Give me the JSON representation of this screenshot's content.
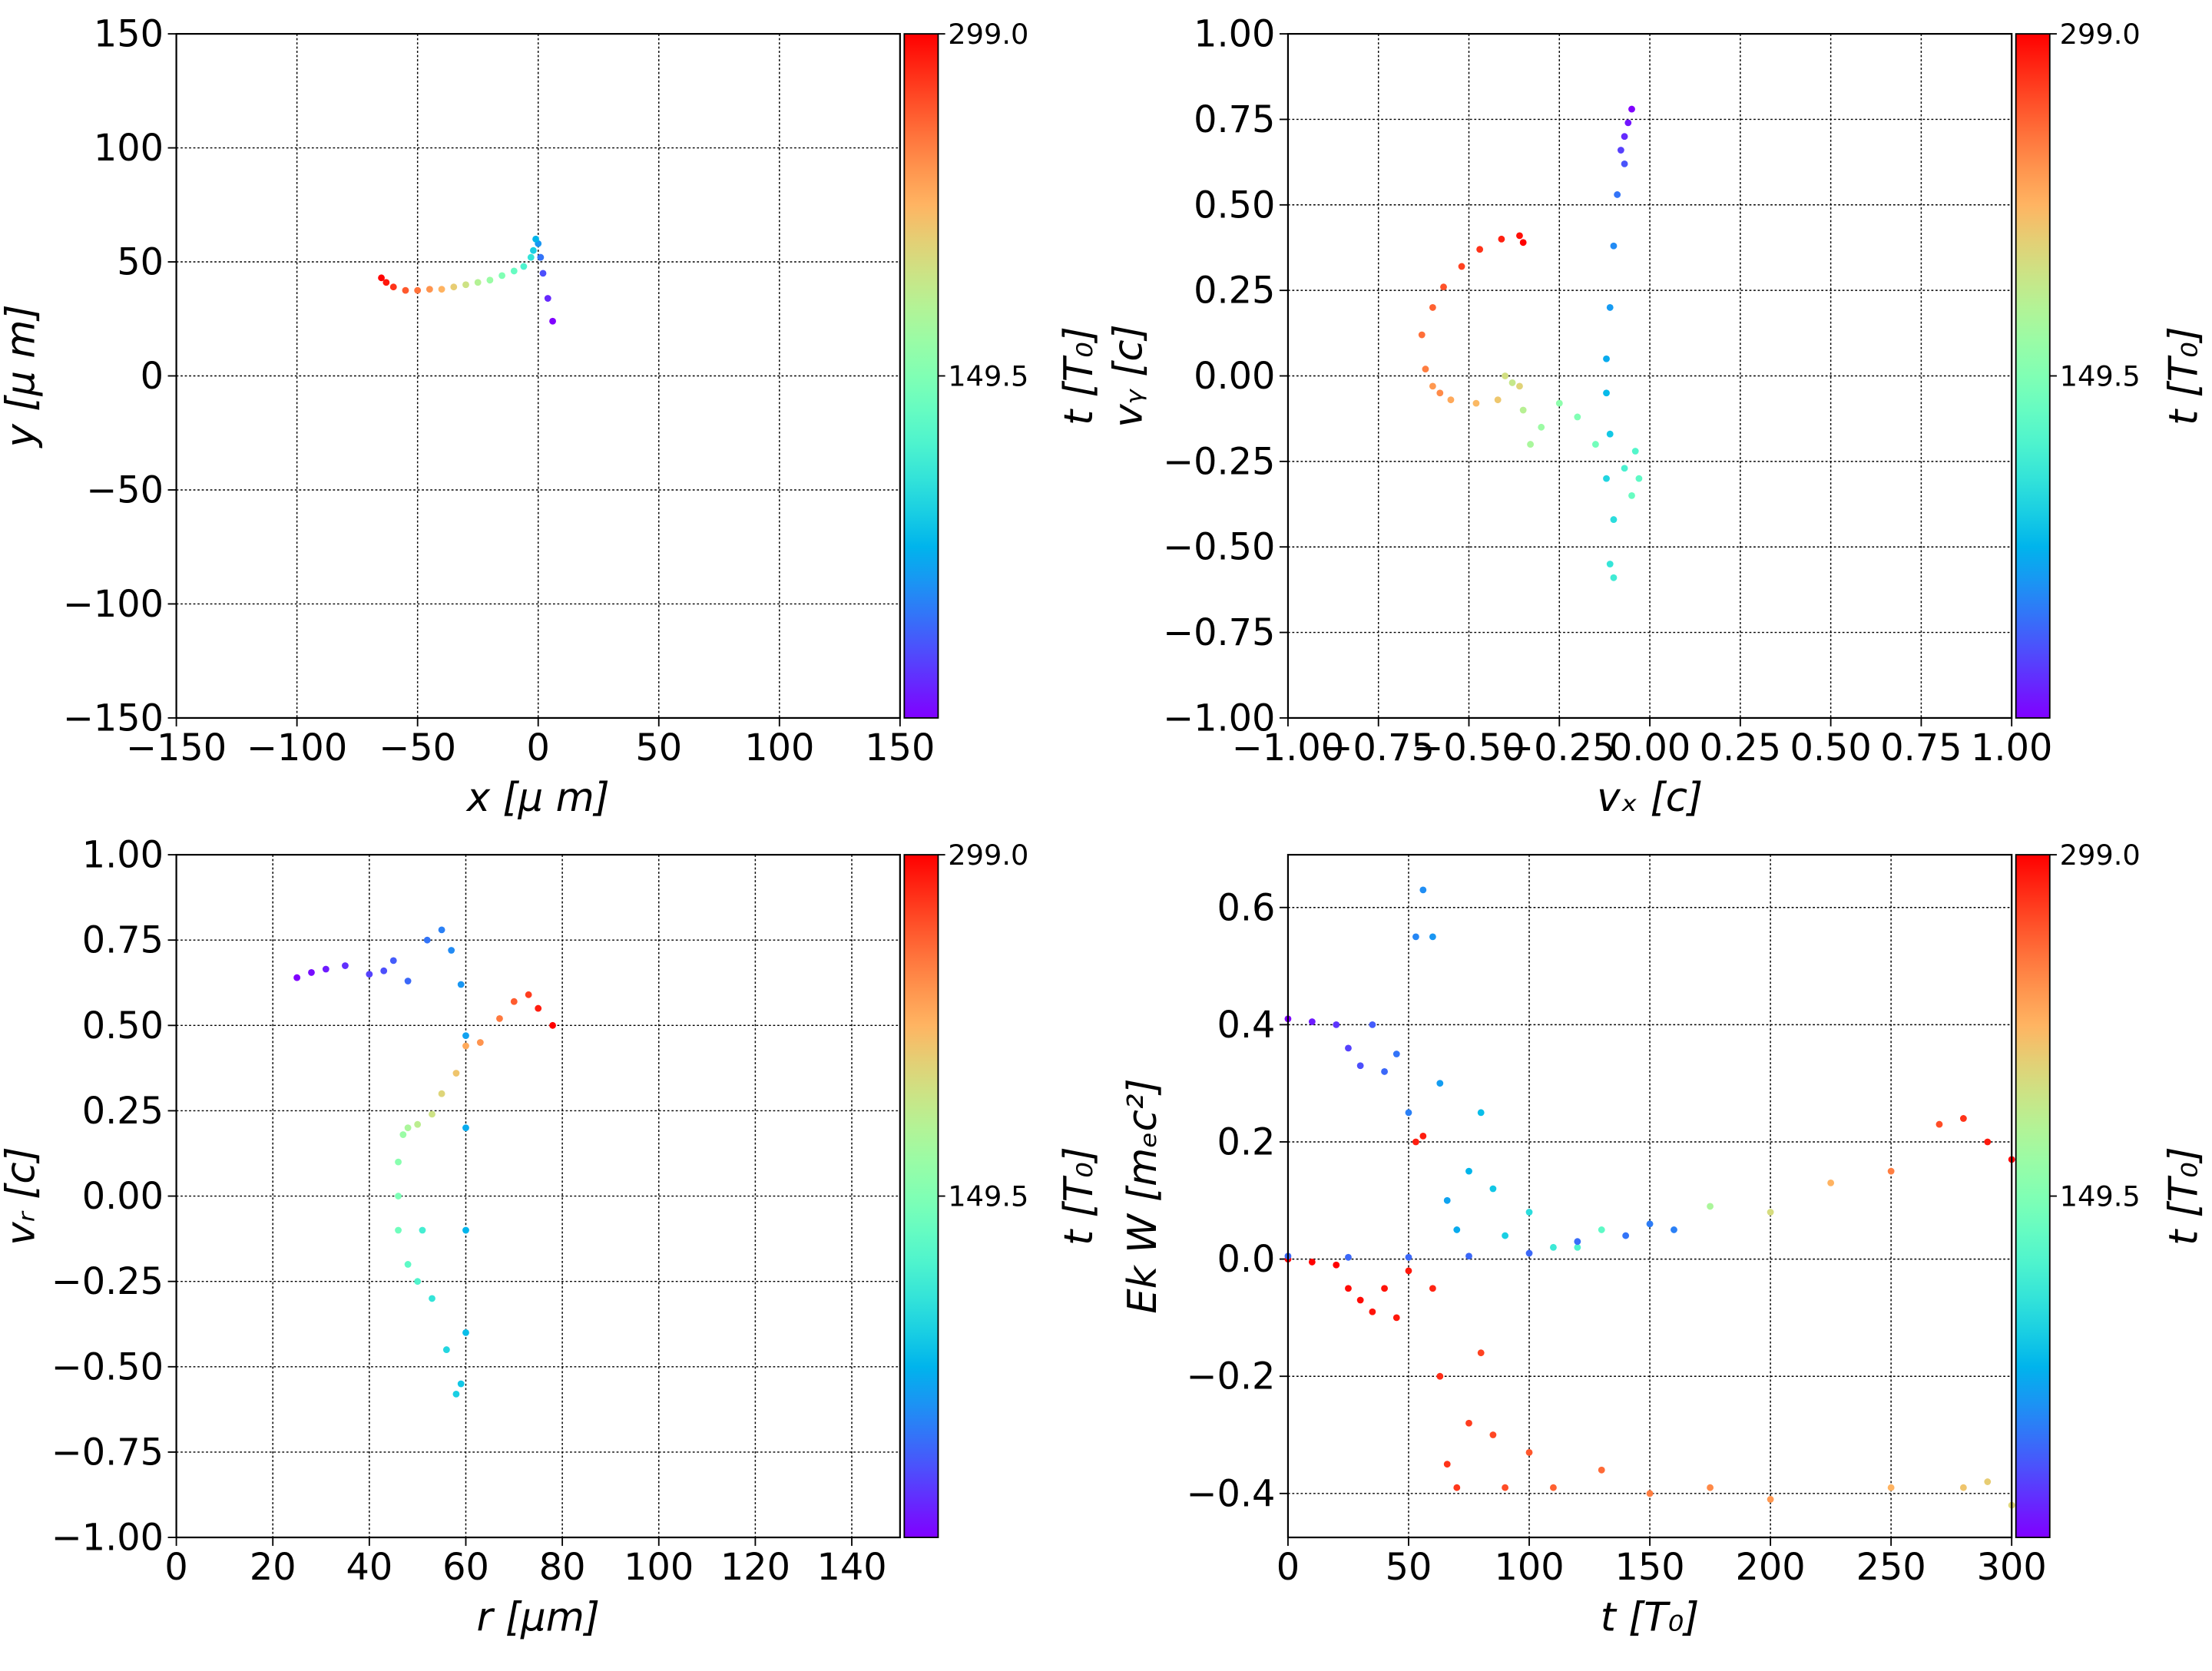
{
  "chart_data": [
    {
      "type": "scatter",
      "xlabel": "x  [μ m]",
      "ylabel": "y  [μ m]",
      "clabel": "t [T₀]",
      "colormap": "rainbow",
      "grid": true,
      "xlim": [
        -150,
        150
      ],
      "ylim": [
        -150,
        150
      ],
      "clim": [
        0,
        299
      ],
      "xticks": [
        {
          "value": -150,
          "label": "−150"
        },
        {
          "value": -100,
          "label": "−100"
        },
        {
          "value": -50,
          "label": "−50"
        },
        0,
        50,
        100,
        150
      ],
      "yticks": [
        {
          "value": -150,
          "label": "−150"
        },
        {
          "value": -100,
          "label": "−100"
        },
        {
          "value": -50,
          "label": "−50"
        },
        0,
        50,
        100,
        150
      ],
      "cticks": [
        149.5,
        {
          "value": 299,
          "label": "299.0"
        }
      ],
      "series": [
        {
          "x": [
            6,
            4,
            2,
            1,
            0,
            -1,
            -2,
            -3,
            -6,
            -10,
            -15,
            -20,
            -25,
            -30,
            -35,
            -40,
            -45,
            -50,
            -55,
            -60,
            -63,
            -65
          ],
          "y": [
            24,
            34,
            45,
            52,
            58,
            60,
            55,
            52,
            48,
            46,
            44,
            42,
            41,
            40,
            39,
            38,
            38,
            37.5,
            37.5,
            39,
            41,
            43
          ],
          "c": [
            0,
            15,
            30,
            45,
            60,
            75,
            90,
            105,
            120,
            135,
            150,
            165,
            180,
            195,
            210,
            225,
            240,
            255,
            265,
            280,
            290,
            299
          ]
        }
      ]
    },
    {
      "type": "scatter",
      "xlabel": "vₓ [c]",
      "ylabel": "vᵧ [c]",
      "clabel": "t [T₀]",
      "colormap": "rainbow",
      "grid": true,
      "xlim": [
        -1,
        1
      ],
      "ylim": [
        -1,
        1
      ],
      "clim": [
        0,
        299
      ],
      "xticks": [
        {
          "value": -1,
          "label": "−1.00"
        },
        {
          "value": -0.75,
          "label": "−0.75"
        },
        {
          "value": -0.5,
          "label": "−0.50"
        },
        {
          "value": -0.25,
          "label": "−0.25"
        },
        {
          "value": 0,
          "label": "0.00"
        },
        {
          "value": 0.25,
          "label": "0.25"
        },
        {
          "value": 0.5,
          "label": "0.50"
        },
        {
          "value": 0.75,
          "label": "0.75"
        },
        {
          "value": 1,
          "label": "1.00"
        }
      ],
      "yticks": [
        {
          "value": -1,
          "label": "−1.00"
        },
        {
          "value": -0.75,
          "label": "−0.75"
        },
        {
          "value": -0.5,
          "label": "−0.50"
        },
        {
          "value": -0.25,
          "label": "−0.25"
        },
        {
          "value": 0,
          "label": "0.00"
        },
        {
          "value": 0.25,
          "label": "0.25"
        },
        {
          "value": 0.5,
          "label": "0.50"
        },
        {
          "value": 0.75,
          "label": "0.75"
        },
        {
          "value": 1,
          "label": "1.00"
        }
      ],
      "cticks": [
        149.5,
        {
          "value": 299,
          "label": "299.0"
        }
      ],
      "series": [
        {
          "x": [
            -0.05,
            -0.06,
            -0.07,
            -0.08,
            -0.07,
            -0.09,
            -0.1,
            -0.11,
            -0.12,
            -0.12,
            -0.11,
            -0.12,
            -0.1,
            -0.11,
            -0.1,
            -0.07,
            -0.04,
            -0.03,
            -0.05,
            -0.15,
            -0.2,
            -0.25,
            -0.3,
            -0.33,
            -0.35,
            -0.38,
            -0.4,
            -0.36,
            -0.42,
            -0.48,
            -0.55,
            -0.6,
            -0.58,
            -0.62,
            -0.63,
            -0.6,
            -0.57,
            -0.52,
            -0.47,
            -0.41,
            -0.36,
            -0.35
          ],
          "y": [
            0.78,
            0.74,
            0.7,
            0.66,
            0.62,
            0.53,
            0.38,
            0.2,
            0.05,
            -0.05,
            -0.17,
            -0.3,
            -0.42,
            -0.55,
            -0.59,
            -0.27,
            -0.22,
            -0.3,
            -0.35,
            -0.2,
            -0.12,
            -0.08,
            -0.15,
            -0.2,
            -0.1,
            -0.02,
            0,
            -0.03,
            -0.07,
            -0.08,
            -0.07,
            -0.03,
            -0.05,
            0.02,
            0.12,
            0.2,
            0.26,
            0.32,
            0.37,
            0.4,
            0.41,
            0.39
          ],
          "c": [
            0,
            8,
            16,
            24,
            32,
            45,
            55,
            62,
            70,
            78,
            86,
            94,
            100,
            106,
            112,
            118,
            124,
            130,
            136,
            142,
            150,
            158,
            166,
            174,
            182,
            190,
            198,
            206,
            214,
            222,
            230,
            238,
            244,
            250,
            256,
            262,
            268,
            274,
            280,
            287,
            293,
            299
          ]
        }
      ]
    },
    {
      "type": "scatter",
      "xlabel": "r [μm]",
      "ylabel": "vᵣ [c]",
      "clabel": "t [T₀]",
      "colormap": "rainbow",
      "grid": true,
      "xlim": [
        0,
        150
      ],
      "ylim": [
        -1,
        1
      ],
      "clim": [
        0,
        299
      ],
      "xticks": [
        0,
        20,
        40,
        60,
        80,
        100,
        120,
        140
      ],
      "yticks": [
        {
          "value": -1,
          "label": "−1.00"
        },
        {
          "value": -0.75,
          "label": "−0.75"
        },
        {
          "value": -0.5,
          "label": "−0.50"
        },
        {
          "value": -0.25,
          "label": "−0.25"
        },
        {
          "value": 0,
          "label": "0.00"
        },
        {
          "value": 0.25,
          "label": "0.25"
        },
        {
          "value": 0.5,
          "label": "0.50"
        },
        {
          "value": 0.75,
          "label": "0.75"
        },
        {
          "value": 1,
          "label": "1.00"
        }
      ],
      "cticks": [
        149.5,
        {
          "value": 299,
          "label": "299.0"
        }
      ],
      "series": [
        {
          "x": [
            25,
            28,
            31,
            35,
            40,
            43,
            45,
            48,
            52,
            55,
            57,
            59,
            60,
            60,
            60,
            60,
            59,
            58,
            56,
            53,
            51,
            50,
            48,
            46,
            46,
            46,
            47,
            48,
            50,
            53,
            55,
            58,
            60,
            63,
            67,
            70,
            73,
            75,
            78
          ],
          "y": [
            0.64,
            0.655,
            0.665,
            0.675,
            0.65,
            0.66,
            0.69,
            0.63,
            0.75,
            0.78,
            0.72,
            0.62,
            0.47,
            0.2,
            -0.1,
            -0.4,
            -0.55,
            -0.58,
            -0.45,
            -0.3,
            -0.1,
            -0.25,
            -0.2,
            -0.1,
            0,
            0.1,
            0.18,
            0.2,
            0.21,
            0.24,
            0.3,
            0.36,
            0.44,
            0.45,
            0.52,
            0.57,
            0.59,
            0.55,
            0.5
          ],
          "c": [
            0,
            5,
            10,
            18,
            25,
            30,
            35,
            40,
            45,
            50,
            55,
            60,
            65,
            70,
            75,
            80,
            85,
            90,
            95,
            105,
            115,
            122,
            130,
            140,
            148,
            155,
            165,
            175,
            185,
            195,
            205,
            215,
            230,
            240,
            252,
            264,
            276,
            288,
            299
          ]
        }
      ]
    },
    {
      "type": "scatter",
      "xlabel": "t [T₀]",
      "ylabel": "Ek W [mₑc²]",
      "clabel": "t [T₀]",
      "colormap": "rainbow",
      "grid": true,
      "xlim": [
        0,
        300
      ],
      "ylim": [
        -0.475,
        0.69
      ],
      "clim": [
        0,
        299
      ],
      "xticks": [
        0,
        50,
        100,
        150,
        200,
        250,
        300
      ],
      "yticks": [
        {
          "value": -0.4,
          "label": "−0.4"
        },
        {
          "value": -0.2,
          "label": "−0.2"
        },
        {
          "value": 0,
          "label": "0.0"
        },
        0.2,
        0.4,
        0.6
      ],
      "cticks": [
        149.5,
        {
          "value": 299,
          "label": "299.0"
        }
      ],
      "series": [
        {
          "x": [
            0,
            10,
            20,
            25,
            30,
            35,
            40,
            45,
            50,
            53,
            56,
            60,
            63,
            66,
            70,
            75,
            80,
            85,
            90,
            100,
            110,
            120,
            130,
            150,
            175,
            200,
            225,
            250,
            270,
            280,
            290,
            300
          ],
          "y": [
            0.41,
            0.405,
            0.4,
            0.36,
            0.33,
            0.4,
            0.32,
            0.35,
            0.25,
            0.55,
            0.63,
            0.55,
            0.3,
            0.1,
            0.05,
            0.15,
            0.25,
            0.12,
            0.04,
            0.08,
            0.02,
            0.02,
            0.05,
            0.06,
            0.09,
            0.08,
            0.13,
            0.15,
            0.23,
            0.24,
            0.2,
            0.17
          ],
          "c": [
            0,
            10,
            20,
            25,
            30,
            35,
            40,
            45,
            50,
            53,
            56,
            60,
            63,
            66,
            70,
            75,
            80,
            85,
            90,
            100,
            110,
            120,
            130,
            150,
            175,
            200,
            225,
            250,
            270,
            280,
            290,
            299
          ]
        },
        {
          "x": [
            0,
            10,
            20,
            25,
            30,
            35,
            40,
            45,
            50,
            53,
            56,
            60,
            63,
            66,
            70,
            75,
            80,
            85,
            90,
            100,
            110,
            130,
            150,
            175,
            200,
            250,
            280,
            290,
            300
          ],
          "y": [
            0,
            -0.005,
            -0.01,
            -0.05,
            -0.07,
            -0.09,
            -0.05,
            -0.1,
            -0.02,
            0.2,
            0.21,
            -0.05,
            -0.2,
            -0.35,
            -0.39,
            -0.28,
            -0.16,
            -0.3,
            -0.39,
            -0.33,
            -0.39,
            -0.36,
            -0.4,
            -0.39,
            -0.41,
            -0.39,
            -0.39,
            -0.38,
            -0.42
          ],
          "c": [
            299,
            299,
            299,
            295,
            295,
            292,
            292,
            290,
            290,
            288,
            288,
            285,
            282,
            280,
            278,
            276,
            274,
            272,
            270,
            266,
            262,
            258,
            250,
            245,
            238,
            225,
            215,
            210,
            205
          ]
        },
        {
          "x": [
            0,
            25,
            50,
            75,
            100,
            120,
            140,
            150,
            160
          ],
          "y": [
            0.005,
            0.003,
            0.003,
            0.005,
            0.01,
            0.03,
            0.04,
            0.06,
            0.05
          ],
          "c": [
            40,
            40,
            40,
            40,
            40,
            42,
            45,
            48,
            50
          ]
        }
      ]
    }
  ]
}
